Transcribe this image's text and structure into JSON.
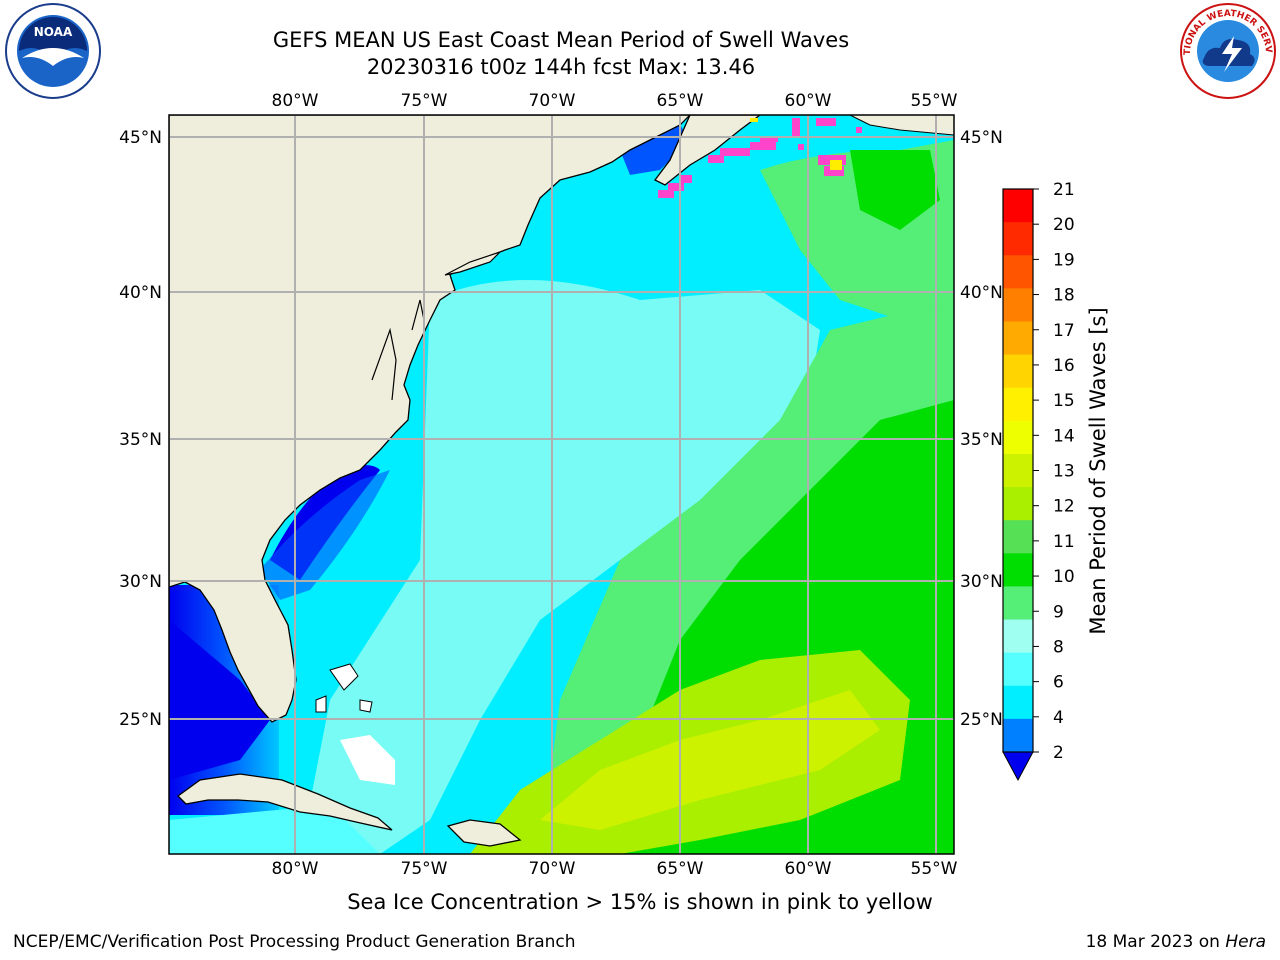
{
  "title_line1": "GEFS MEAN US East Coast Mean Period of Swell Waves",
  "title_line2": "20230316 t00z 144h fcst   Max: 13.46",
  "note": "Sea Ice Concentration > 15% is shown in pink to yellow",
  "footer_left": "NCEP/EMC/Verification Post Processing Product Generation Branch",
  "footer_right_prefix": "18 Mar 2023 on ",
  "footer_right_host": "Hera",
  "logos": {
    "noaa": {
      "icon": "noaa-logo",
      "text": "NOAA"
    },
    "nws": {
      "icon": "nws-logo",
      "text": "NATIONAL WEATHER SERVICE"
    }
  },
  "map": {
    "lon_labels": [
      "80°W",
      "75°W",
      "70°W",
      "65°W",
      "60°W",
      "55°W"
    ],
    "lat_labels": [
      "45°N",
      "40°N",
      "35°N",
      "30°N",
      "25°N"
    ],
    "land_color": "#efeedd",
    "grid_color": "#b0b0b0"
  },
  "colorbar": {
    "title": "Mean Period of Swell Waves [s]",
    "ticks": [
      "21",
      "20",
      "19",
      "18",
      "17",
      "16",
      "15",
      "14",
      "13",
      "12",
      "11",
      "10",
      "9",
      "8",
      "6",
      "4",
      "2"
    ],
    "colors": [
      "#ff0000",
      "#ff2a00",
      "#ff5500",
      "#ff7f00",
      "#ffaa00",
      "#ffd400",
      "#fff000",
      "#eeff00",
      "#cdf200",
      "#aaee00",
      "#55e055",
      "#00dd00",
      "#55ee77",
      "#9ffff0",
      "#55ffff",
      "#00eeff",
      "#0080ff"
    ],
    "extend_color": "#0000ee"
  }
}
